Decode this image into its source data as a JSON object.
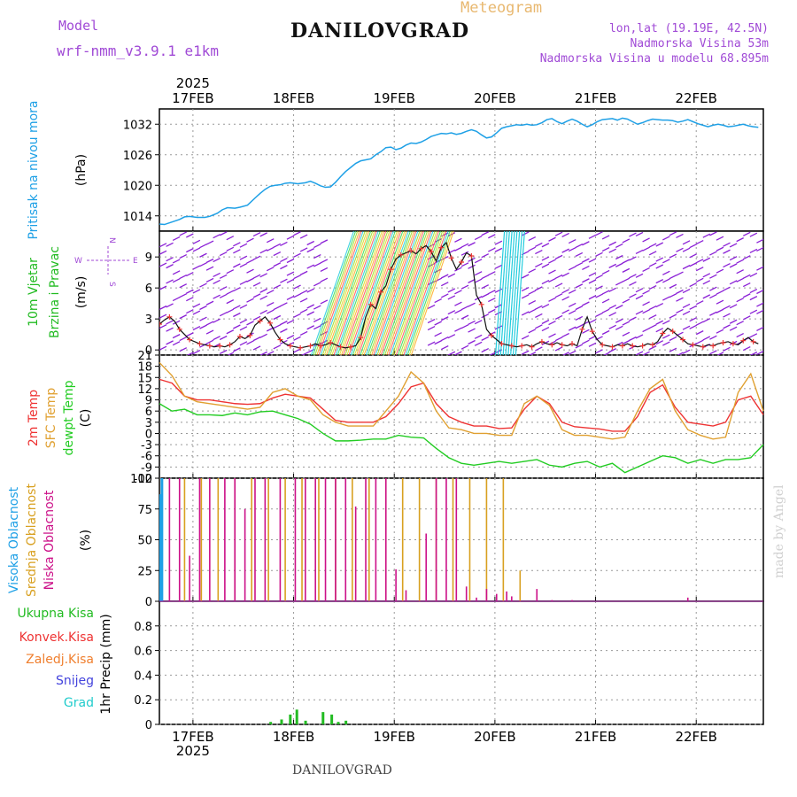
{
  "header": {
    "title": "DANILOVGRAD",
    "model_label": "Model",
    "model_name": "wrf-nmm_v3.9.1 e1km",
    "meteogram_label": "Meteogram",
    "location": "lon,lat (19.19E, 42.5N)",
    "altitude": "Nadmorska Visina 53m",
    "model_altitude": "Nadmorska Visina u modelu 68.895m"
  },
  "footer": {
    "station": "DANILOVGRAD",
    "credit": "made by Angel"
  },
  "colors": {
    "pressure": "#1ea0e6",
    "temp": "#ee3333",
    "sfc_temp": "#e0a030",
    "dewpt": "#22cc22",
    "wind_arrow": "#8a1fd6",
    "low_cloud": "#cc1088",
    "mid_cloud": "#d8a020",
    "high_cloud": "#1ea0e6",
    "precip": "#22bb22"
  },
  "chart_data": [
    {
      "id": "pressure",
      "type": "line",
      "ylabel_rot": "Pritisak na nivou mora",
      "unit": "(hPa)",
      "x_year": "2025",
      "x_ticks": [
        "17FEB",
        "18FEB",
        "19FEB",
        "20FEB",
        "21FEB",
        "22FEB"
      ],
      "ylim": [
        1011,
        1035
      ],
      "yticks": [
        1014,
        1020,
        1026,
        1032
      ],
      "series": [
        {
          "x": [
            0,
            0.2,
            0.5,
            0.8,
            1.0,
            1.2,
            1.5,
            1.8,
            2.0,
            2.3,
            2.5,
            2.7,
            3.0,
            3.2,
            3.5,
            3.8,
            4.0,
            4.2,
            4.4,
            4.6,
            4.8,
            5.0,
            5.2,
            5.5,
            5.8,
            6.0,
            6.2,
            6.4,
            6.6,
            6.8,
            7.0,
            7.2,
            7.4,
            7.6,
            7.8,
            8.0,
            8.2,
            8.4,
            8.6,
            8.8,
            9.0,
            9.2,
            9.4,
            9.6,
            9.8,
            10.0,
            10.2,
            10.4,
            10.6,
            10.8,
            11.0,
            11.2,
            11.4,
            11.6,
            11.8,
            12.0,
            12.2,
            12.4,
            12.6,
            12.8,
            13.0,
            13.2,
            13.4,
            13.6,
            13.8,
            14.0,
            14.2,
            14.4,
            14.6,
            14.8,
            15.0,
            15.2,
            15.4,
            15.6,
            15.8,
            16.0,
            16.2,
            16.4,
            16.6,
            16.8,
            17.0,
            17.2,
            17.4,
            17.6,
            17.8,
            18.0,
            18.2,
            18.4,
            18.6,
            18.8,
            19.0,
            19.2,
            19.4,
            19.6,
            19.8,
            20.0,
            20.2,
            20.4,
            20.6,
            20.8,
            21.0,
            21.2,
            21.4,
            21.6,
            21.8,
            22.0,
            22.2,
            22.4,
            22.6,
            22.8,
            23.0,
            23.2,
            23.4,
            23.6,
            23.8
          ],
          "y": [
            1012.4,
            1012.3,
            1012.8,
            1013.3,
            1013.8,
            1013.9,
            1013.7,
            1013.7,
            1013.9,
            1014.5,
            1015.2,
            1015.6,
            1015.5,
            1015.7,
            1016.1,
            1017.5,
            1018.4,
            1019.2,
            1019.8,
            1020.0,
            1020.1,
            1020.4,
            1020.5,
            1020.3,
            1020.5,
            1020.8,
            1020.4,
            1019.9,
            1019.6,
            1019.7,
            1020.6,
            1021.7,
            1022.7,
            1023.5,
            1024.3,
            1024.8,
            1025.0,
            1025.2,
            1026.0,
            1026.6,
            1027.4,
            1027.5,
            1027.0,
            1027.3,
            1027.9,
            1028.3,
            1028.2,
            1028.5,
            1029.0,
            1029.6,
            1029.9,
            1030.2,
            1030.1,
            1030.3,
            1030.0,
            1030.2,
            1030.6,
            1030.9,
            1030.6,
            1029.9,
            1029.3,
            1029.5,
            1030.3,
            1031.2,
            1031.5,
            1031.7,
            1031.9,
            1031.8,
            1032.0,
            1031.8,
            1031.9,
            1032.3,
            1032.9,
            1033.1,
            1032.5,
            1032.1,
            1032.6,
            1033.0,
            1032.6,
            1032.0,
            1031.5,
            1031.9,
            1032.5,
            1032.9,
            1033.0,
            1033.1,
            1032.8,
            1033.2,
            1033.0,
            1032.5,
            1032.0,
            1032.3,
            1032.7,
            1033.0,
            1032.9,
            1032.8,
            1032.8,
            1032.7,
            1032.4,
            1032.6,
            1032.9,
            1032.5,
            1032.1,
            1031.8,
            1031.5,
            1031.8,
            1032.0,
            1031.8,
            1031.5,
            1031.6,
            1031.8,
            1032.0,
            1031.7,
            1031.5,
            1031.4
          ]
        }
      ]
    },
    {
      "id": "wind",
      "type": "line",
      "ylabel_rot": "10m Vjetar",
      "ylabel_rot2": "Brzina i Pravac",
      "unit": "(m/s)",
      "compass": {
        "n": "N",
        "w": "W",
        "e": "E",
        "s": "S"
      },
      "ylim": [
        -0.5,
        11.5
      ],
      "yticks": [
        0,
        3,
        6,
        9
      ],
      "series": [
        {
          "name": "speed",
          "x": [
            0,
            1,
            2,
            3,
            4,
            5,
            6,
            7,
            8,
            9,
            10,
            11,
            12,
            13,
            14,
            15,
            16,
            17,
            18,
            19,
            20,
            21,
            22,
            23,
            24,
            25,
            26,
            27,
            28,
            29,
            30,
            31,
            32,
            33,
            34,
            35,
            36,
            37,
            38,
            39,
            40,
            41,
            42,
            43,
            44,
            45,
            46,
            47,
            48,
            49,
            50,
            51,
            52,
            53,
            54,
            55,
            56,
            57,
            58,
            59,
            60,
            61,
            62,
            63,
            64,
            65,
            66,
            67,
            68,
            69,
            70,
            71,
            72,
            73,
            74,
            75,
            76,
            77,
            78,
            79,
            80,
            81,
            82,
            83,
            84,
            85,
            86,
            87,
            88,
            89,
            90,
            91,
            92,
            93,
            94,
            95,
            96,
            97,
            98,
            99,
            100,
            101,
            102,
            103,
            104,
            105,
            106,
            107,
            108,
            109,
            110,
            111,
            112,
            113,
            114,
            115,
            116,
            117,
            118,
            119
          ],
          "y": [
            2.5,
            2.9,
            3.2,
            2.8,
            2.0,
            1.5,
            1.0,
            0.8,
            0.6,
            0.5,
            0.4,
            0.3,
            0.4,
            0.3,
            0.5,
            0.8,
            1.3,
            1.1,
            1.4,
            2.4,
            2.8,
            3.2,
            2.6,
            1.7,
            1.0,
            0.6,
            0.4,
            0.3,
            0.2,
            0.3,
            0.4,
            0.6,
            0.4,
            0.5,
            0.7,
            0.5,
            0.3,
            0.2,
            0.3,
            0.4,
            1.2,
            3.2,
            4.4,
            4.0,
            5.6,
            6.2,
            7.8,
            8.8,
            9.2,
            9.4,
            9.6,
            9.3,
            9.8,
            10.1,
            9.5,
            8.6,
            9.9,
            10.4,
            8.9,
            7.8,
            8.5,
            9.4,
            9.1,
            5.3,
            4.4,
            2.0,
            1.4,
            1.0,
            0.6,
            0.5,
            0.4,
            0.3,
            0.4,
            0.5,
            0.3,
            0.6,
            0.8,
            0.6,
            0.5,
            0.7,
            0.5,
            0.4,
            0.6,
            0.4,
            2.0,
            3.2,
            1.8,
            1.0,
            0.5,
            0.4,
            0.3,
            0.5,
            0.4,
            0.6,
            0.4,
            0.3,
            0.4,
            0.6,
            0.5,
            0.8,
            1.6,
            2.1,
            1.8,
            1.4,
            1.0,
            0.6,
            0.5,
            0.4,
            0.3,
            0.5,
            0.4,
            0.6,
            0.7,
            0.8,
            0.6,
            0.5,
            0.9,
            1.2,
            0.8,
            0.6
          ]
        }
      ]
    },
    {
      "id": "temperature",
      "type": "line",
      "ylabel_rot": "2m Temp",
      "ylabel_rot2": "SFC Temp",
      "ylabel_rot3": "dewpt Temp",
      "unit": "(C)",
      "ylim": [
        -12,
        21
      ],
      "yticks": [
        -12,
        -9,
        -6,
        -3,
        0,
        3,
        6,
        9,
        12,
        15,
        18,
        21
      ],
      "series": [
        {
          "name": "2m Temp",
          "x": [
            0,
            3,
            6,
            9,
            12,
            15,
            18,
            21,
            24,
            27,
            30,
            33,
            36,
            39,
            42,
            45,
            48,
            51,
            54,
            57,
            60,
            63,
            66,
            69,
            72,
            75,
            78,
            81,
            84,
            87,
            90,
            93,
            96,
            99,
            102,
            105,
            108,
            111,
            114,
            117,
            120,
            123,
            126,
            129,
            132,
            135,
            138,
            141,
            144
          ],
          "y": [
            14.5,
            13.5,
            10,
            9,
            9,
            8.5,
            8,
            7.8,
            8,
            9.5,
            10.5,
            10,
            9.5,
            6.5,
            3.5,
            3,
            3,
            3,
            4.5,
            8,
            12.5,
            13.5,
            8,
            4.5,
            3,
            2,
            2,
            1.3,
            1.5,
            6.5,
            10,
            8,
            3,
            1.8,
            1.5,
            1.2,
            0.6,
            0.6,
            4.5,
            11,
            13,
            7,
            3,
            2.5,
            2,
            3,
            9,
            10,
            5
          ]
        },
        {
          "name": "SFC Temp",
          "x": [
            0,
            3,
            6,
            9,
            12,
            15,
            18,
            21,
            24,
            27,
            30,
            33,
            36,
            39,
            42,
            45,
            48,
            51,
            54,
            57,
            60,
            63,
            66,
            69,
            72,
            75,
            78,
            81,
            84,
            87,
            90,
            93,
            96,
            99,
            102,
            105,
            108,
            111,
            114,
            117,
            120,
            123,
            126,
            129,
            132,
            135,
            138,
            141,
            144
          ],
          "y": [
            19,
            15.5,
            10,
            8.5,
            8,
            7.5,
            7,
            6.5,
            7,
            11,
            12,
            10,
            9,
            5,
            3,
            2,
            2,
            2,
            6,
            10,
            16.5,
            13.5,
            6,
            1.5,
            1,
            0,
            0,
            -0.5,
            -0.5,
            8,
            10,
            7.5,
            1,
            -0.5,
            -0.5,
            -1,
            -1.5,
            -1,
            6,
            12,
            14.5,
            6,
            1,
            -0.5,
            -1.5,
            -1,
            11,
            16,
            6
          ]
        },
        {
          "name": "dewpt Temp",
          "x": [
            0,
            3,
            6,
            9,
            12,
            15,
            18,
            21,
            24,
            27,
            30,
            33,
            36,
            39,
            42,
            45,
            48,
            51,
            54,
            57,
            60,
            63,
            66,
            69,
            72,
            75,
            78,
            81,
            84,
            87,
            90,
            93,
            96,
            99,
            102,
            105,
            108,
            111,
            114,
            117,
            120,
            123,
            126,
            129,
            132,
            135,
            138,
            141,
            144
          ],
          "y": [
            8,
            6,
            6.5,
            5,
            5,
            4.8,
            5.5,
            5,
            5.8,
            6,
            5,
            4,
            2.5,
            0,
            -2,
            -2,
            -1.8,
            -1.5,
            -1.5,
            -0.5,
            -1,
            -1.2,
            -4,
            -6.5,
            -8,
            -8.5,
            -8,
            -7.5,
            -8,
            -7.5,
            -7,
            -8.5,
            -9,
            -8,
            -7.5,
            -9,
            -8,
            -10.5,
            -9,
            -7.5,
            -6,
            -6.5,
            -8,
            -7,
            -8,
            -7,
            -7,
            -6.5,
            -3
          ]
        }
      ]
    },
    {
      "id": "clouds",
      "type": "bar",
      "ylabel_rot": "Visoka Oblacnost",
      "ylabel_rot2": "Srednja Oblacnost",
      "ylabel_rot3": "Niska Oblacnost",
      "unit": "(%)",
      "ylim": [
        0,
        100
      ],
      "yticks": [
        0,
        25,
        50,
        75,
        100
      ],
      "series": [
        {
          "name": "Visoka Oblacnost",
          "x": [
            0.3,
            0.6
          ],
          "values": [
            87,
            100
          ]
        },
        {
          "name": "Srednja Oblacnost",
          "x": [
            1.5,
            2.5,
            3.5,
            4.5,
            5.5,
            6.5,
            7.5,
            8.5,
            9.5,
            10.5,
            11.5,
            12.5,
            13.5,
            14.5,
            15.5,
            16.5,
            17.5,
            18.5,
            19.5,
            20.5,
            21.5
          ],
          "values": [
            100,
            100,
            100,
            100,
            100,
            100,
            100,
            100,
            100,
            100,
            100,
            100,
            100,
            100,
            100,
            100,
            100,
            100,
            100,
            100,
            25
          ]
        },
        {
          "name": "Niska Oblacnost",
          "x": [
            2,
            4,
            6,
            8,
            10,
            13,
            15,
            17,
            19,
            21,
            24,
            27,
            29,
            31,
            33,
            35,
            37,
            39,
            41,
            43,
            45,
            47,
            49,
            53,
            55,
            57,
            59,
            61,
            63,
            65,
            67,
            69,
            70,
            75,
            78,
            82,
            86,
            90,
            94,
            98,
            105,
            125,
            135
          ],
          "values": [
            100,
            100,
            37,
            100,
            100,
            100,
            100,
            75,
            100,
            100,
            100,
            100,
            100,
            100,
            100,
            100,
            100,
            77,
            100,
            100,
            100,
            26,
            9,
            55,
            100,
            100,
            100,
            12,
            3,
            10,
            6,
            8,
            4,
            10,
            1,
            1,
            0,
            0,
            0,
            0,
            3,
            5,
            1
          ]
        }
      ]
    },
    {
      "id": "precip",
      "type": "bar",
      "legend_items": [
        "Ukupna Kisa",
        "Konvek.Kisa",
        "Zaledj.Kisa",
        "Snijeg",
        "Grad"
      ],
      "ylabel_rot": "1hr Precip (mm)",
      "ylim": [
        0,
        1.0
      ],
      "yticks": [
        0,
        0.2,
        0.4,
        0.6,
        0.8
      ],
      "x_ticks": [
        "17FEB",
        "18FEB",
        "19FEB",
        "20FEB",
        "21FEB",
        "22FEB"
      ],
      "x_year": "2025",
      "series": [
        {
          "name": "Ukupna Kisa",
          "x": [
            7,
            8,
            8.8,
            9.4,
            10.2,
            11.8,
            12.6,
            13.2,
            13.9
          ],
          "values": [
            0.02,
            0.04,
            0.08,
            0.12,
            0.03,
            0.1,
            0.08,
            0.02,
            0.03
          ]
        }
      ]
    }
  ]
}
